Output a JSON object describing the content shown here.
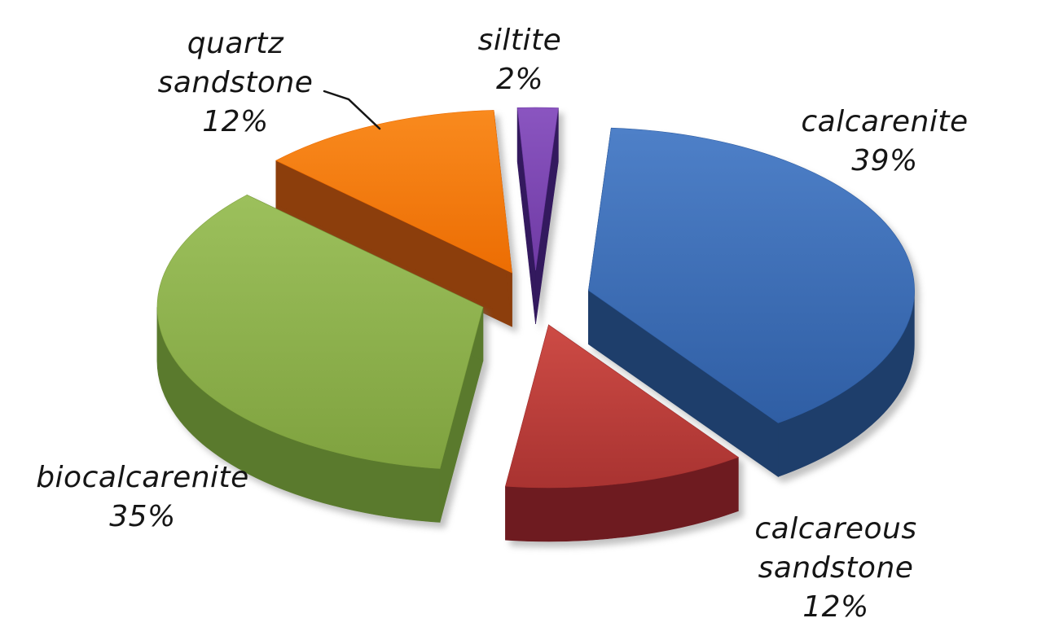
{
  "page": {
    "background_color": "#ffffff",
    "text_color": "#151515"
  },
  "chart_data": {
    "type": "pie",
    "style": "3d-exploded",
    "title": "",
    "unit": "%",
    "legend": "none",
    "labels_on_chart": true,
    "start_position": "top",
    "direction": "clockwise",
    "slices": [
      {
        "label": "calcarenite",
        "value": 39,
        "pct_label": "39%",
        "color": "#2F5EA4",
        "color_light": "#4E80C8",
        "color_dark": "#1E3E6B"
      },
      {
        "label": "calcareous sandstone",
        "value": 12,
        "pct_label": "12%",
        "color": "#A93331",
        "color_light": "#CD4B45",
        "color_dark": "#6E1B20"
      },
      {
        "label": "biocalcarenite",
        "value": 35,
        "pct_label": "35%",
        "color": "#7FA23F",
        "color_light": "#9CC05C",
        "color_dark": "#5A7A2D"
      },
      {
        "label": "quartz sandstone",
        "value": 12,
        "pct_label": "12%",
        "color": "#EC6D03",
        "color_light": "#F98A1E",
        "color_dark": "#8C3E0C"
      },
      {
        "label": "siltite",
        "value": 2,
        "pct_label": "2%",
        "color": "#6F3AA4",
        "color_light": "#8A55C0",
        "color_dark": "#33195E"
      }
    ]
  }
}
